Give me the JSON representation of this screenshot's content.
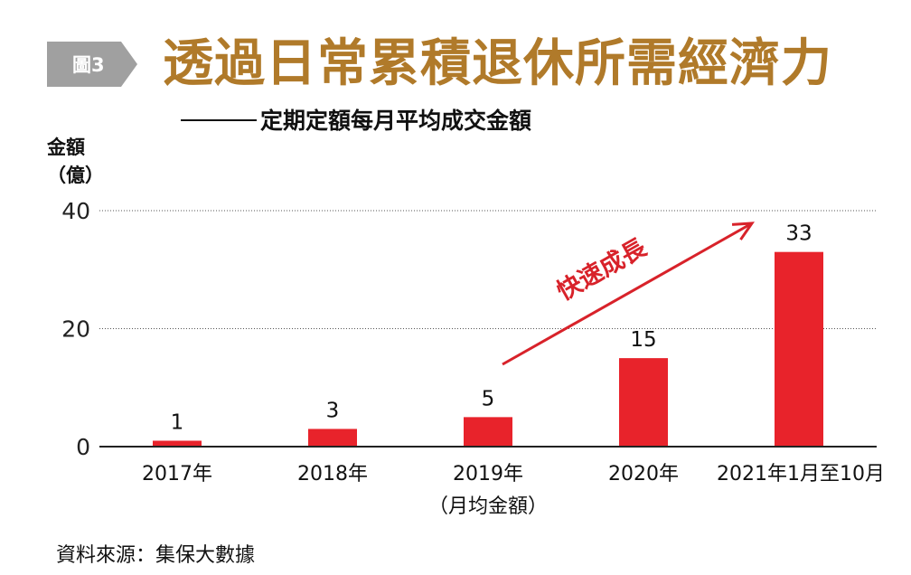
{
  "figure_tag": "圖3",
  "title": "透過日常累積退休所需經濟力",
  "subtitle": "定期定額每月平均成交金額",
  "y_unit": {
    "line1": "金額",
    "line2": "（億）"
  },
  "source": "資料來源：集保大數據",
  "colors": {
    "bar": "#e8232b",
    "title": "#b07a2a",
    "tag": "#a0a0a0",
    "annotation": "#d8222a"
  },
  "chart_data": {
    "type": "bar",
    "categories": [
      "2017年",
      "2018年",
      "2019年",
      "2020年",
      "2021年1月至10月"
    ],
    "category_note": {
      "index": 2,
      "text": "（月均金額）"
    },
    "values": [
      1,
      3,
      5,
      15,
      33
    ],
    "data_labels": [
      "1",
      "3",
      "5",
      "15",
      "33"
    ],
    "ylim": [
      0,
      40
    ],
    "yticks": [
      0,
      20,
      40
    ],
    "ytick_labels": [
      "0",
      "20",
      "40"
    ],
    "grid": "dotted horizontal",
    "annotation": {
      "text": "快速成長",
      "type": "arrow"
    }
  }
}
